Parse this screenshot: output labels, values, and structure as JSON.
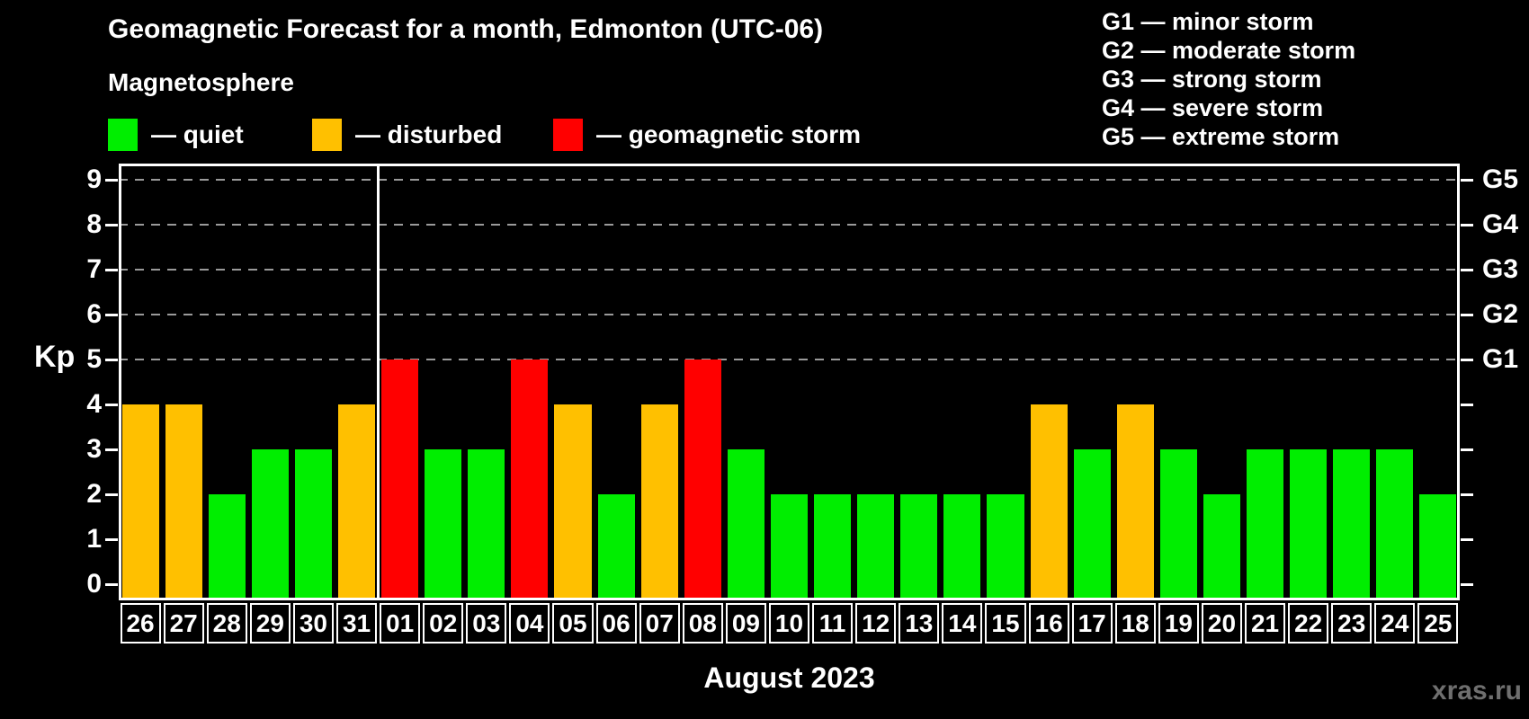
{
  "header": {
    "title": "Geomagnetic Forecast for a month, Edmonton (UTC-06)",
    "subtitle": "Magnetosphere",
    "legend": [
      {
        "key": "quiet",
        "label": "— quiet",
        "color": "#00ee00"
      },
      {
        "key": "disturbed",
        "label": "— disturbed",
        "color": "#ffc000"
      },
      {
        "key": "storm",
        "label": "— geomagnetic storm",
        "color": "#ff0000"
      }
    ],
    "g_scale_legend": [
      "G1 — minor storm",
      "G2 — moderate storm",
      "G3 — strong storm",
      "G4 — severe storm",
      "G5 — extreme storm"
    ]
  },
  "chart_data": {
    "type": "bar",
    "title": "Geomagnetic Forecast for a month, Edmonton (UTC-06)",
    "subtitle": "Magnetosphere",
    "ylabel": "Kp",
    "xlabel": "August 2023",
    "ylim": [
      0,
      9.35
    ],
    "yticks": [
      0,
      1,
      2,
      3,
      4,
      5,
      6,
      7,
      8,
      9
    ],
    "grid": "dashed horizontal lines at Kp 5-9 only",
    "gridlines_at": [
      5,
      6,
      7,
      8,
      9
    ],
    "right_axis_labels": [
      {
        "value": 5,
        "label": "G1"
      },
      {
        "value": 6,
        "label": "G2"
      },
      {
        "value": 7,
        "label": "G3"
      },
      {
        "value": 8,
        "label": "G4"
      },
      {
        "value": 9,
        "label": "G5"
      }
    ],
    "month_divider_after_index": 5,
    "categories": [
      "26",
      "27",
      "28",
      "29",
      "30",
      "31",
      "01",
      "02",
      "03",
      "04",
      "05",
      "06",
      "07",
      "08",
      "09",
      "10",
      "11",
      "12",
      "13",
      "14",
      "15",
      "16",
      "17",
      "18",
      "19",
      "20",
      "21",
      "22",
      "23",
      "24",
      "25"
    ],
    "values": [
      4,
      4,
      2,
      3,
      3,
      4,
      5,
      3,
      3,
      5,
      4,
      2,
      4,
      5,
      3,
      2,
      2,
      2,
      2,
      2,
      2,
      4,
      3,
      4,
      3,
      2,
      3,
      3,
      3,
      3,
      2
    ],
    "statuses": [
      "disturbed",
      "disturbed",
      "quiet",
      "quiet",
      "quiet",
      "disturbed",
      "storm",
      "quiet",
      "quiet",
      "storm",
      "disturbed",
      "quiet",
      "disturbed",
      "storm",
      "quiet",
      "quiet",
      "quiet",
      "quiet",
      "quiet",
      "quiet",
      "quiet",
      "disturbed",
      "quiet",
      "disturbed",
      "quiet",
      "quiet",
      "quiet",
      "quiet",
      "quiet",
      "quiet",
      "quiet"
    ]
  },
  "footer": {
    "month_label": "August 2023",
    "watermark": "xras.ru"
  },
  "colors": {
    "background": "#000000",
    "quiet": "#00ee00",
    "disturbed": "#ffc000",
    "storm": "#ff0000",
    "axis": "#ffffff",
    "grid": "#9a9a9a",
    "watermark": "#6f6f6f"
  }
}
